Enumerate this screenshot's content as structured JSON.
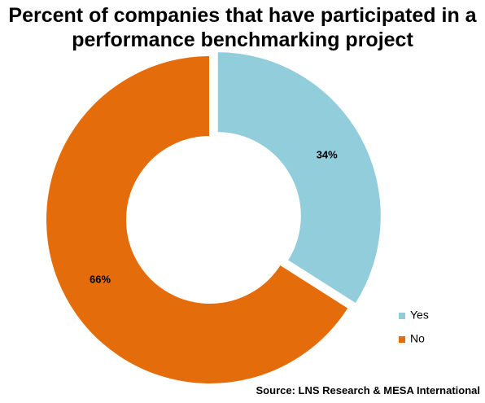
{
  "chart_data": {
    "type": "pie",
    "title": "Percent of companies that have participated in a performance benchmarking project",
    "categories": [
      "Yes",
      "No"
    ],
    "values": [
      34,
      66
    ],
    "data_labels": [
      "34%",
      "66%"
    ],
    "colors": [
      "#92CDDC",
      "#E46C0A"
    ],
    "donut": true,
    "exploded": "Yes",
    "legend_position": "bottom-right",
    "source": "Source: LNS Research & MESA International"
  }
}
